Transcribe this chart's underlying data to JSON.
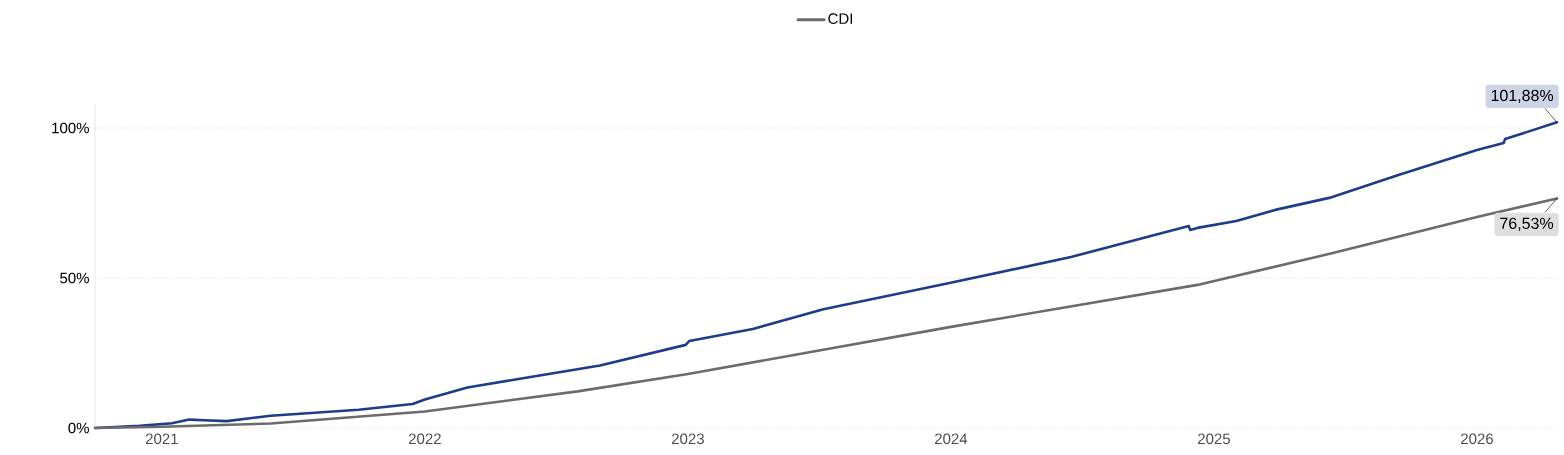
{
  "chart_data": {
    "type": "line",
    "legend": "top",
    "grid": "y",
    "line_style": "solid",
    "marker": "none",
    "xlim": [
      "2020-09-30",
      "2026-04-22"
    ],
    "xticks": [
      "2021",
      "2022",
      "2023",
      "2024",
      "2025",
      "2026"
    ],
    "ylim": [
      0,
      108
    ],
    "yticks": [
      {
        "value": 0,
        "label": "0%"
      },
      {
        "value": 50,
        "label": "50%"
      },
      {
        "value": 100,
        "label": "100%"
      }
    ],
    "series": [
      {
        "color": "#1f3c88",
        "x": [
          "2020-09-30",
          "2020-12-01",
          "2021-01-15",
          "2021-02-08",
          "2021-03-01",
          "2021-04-01",
          "2021-06-01",
          "2021-10-01",
          "2021-12-15",
          "2022-01-01",
          "2022-03-01",
          "2022-05-15",
          "2022-09-01",
          "2022-12-29",
          "2023-01-03",
          "2023-04-01",
          "2023-07-08",
          "2023-12-30",
          "2024-06-16",
          "2024-11-27",
          "2024-11-29",
          "2024-12-09",
          "2025-02-01",
          "2025-03-27",
          "2025-06-10",
          "2025-09-14",
          "2026-01-01",
          "2026-02-07",
          "2026-02-09",
          "2026-04-22"
        ],
        "values": [
          0,
          0.7,
          1.6,
          2.8,
          2.6,
          2.3,
          4.1,
          6.1,
          8.0,
          9.5,
          13.5,
          16.5,
          20.8,
          27.7,
          29.0,
          33.0,
          39.6,
          48.3,
          57.0,
          67.3,
          66.0,
          66.7,
          69.0,
          72.7,
          76.7,
          84.3,
          92.7,
          95.0,
          96.3,
          101.88
        ],
        "value_labels": [
          null,
          null,
          null,
          null,
          null,
          null,
          null,
          null,
          null,
          null,
          null,
          null,
          null,
          null,
          null,
          null,
          null,
          null,
          null,
          null,
          null,
          null,
          null,
          null,
          null,
          null,
          null,
          null,
          null,
          "101,88%"
        ]
      },
      {
        "name": "CDI",
        "color": "#6b6b6b",
        "x": [
          "2020-09-30",
          "2021-01-01",
          "2021-06-01",
          "2022-01-01",
          "2022-08-01",
          "2023-01-01",
          "2024-01-01",
          "2024-12-09",
          "2025-06-15",
          "2026-01-01",
          "2026-04-22"
        ],
        "values": [
          0,
          0.4,
          1.5,
          5.5,
          12.2,
          18.0,
          33.7,
          47.7,
          58.3,
          70.3,
          76.53
        ],
        "value_labels": [
          null,
          null,
          null,
          null,
          null,
          null,
          null,
          null,
          null,
          null,
          "76,53%"
        ]
      }
    ]
  }
}
